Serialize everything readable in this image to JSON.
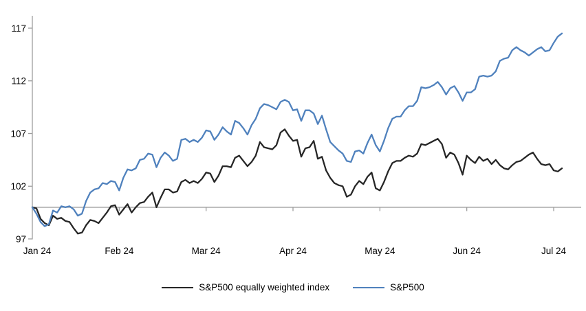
{
  "chart_data": {
    "type": "line",
    "title": "",
    "xlabel": "",
    "ylabel": "",
    "x_tick_labels": [
      "Jan 24",
      "Feb 24",
      "Mar 24",
      "Apr 24",
      "May 24",
      "Jun 24",
      "Jul 24"
    ],
    "y_ticks": [
      97,
      102,
      107,
      112,
      117
    ],
    "ylim": [
      96.2,
      118.3
    ],
    "baseline_value": 100,
    "grid": "baseline-only",
    "legend_position": "bottom",
    "axis_color": "#9d9d9d",
    "series": [
      {
        "name": "S&P500 equally weighted index",
        "color": "#262626",
        "values": [
          100.0,
          99.9,
          98.9,
          98.5,
          98.3,
          99.2,
          98.9,
          99.0,
          98.7,
          98.6,
          98.0,
          97.5,
          97.6,
          98.3,
          98.8,
          98.7,
          98.5,
          99.0,
          99.5,
          100.1,
          100.2,
          99.3,
          99.8,
          100.3,
          99.5,
          100.0,
          100.4,
          100.5,
          101.0,
          101.4,
          100.0,
          100.9,
          101.7,
          101.7,
          101.4,
          101.5,
          102.4,
          102.6,
          102.3,
          102.5,
          102.3,
          102.7,
          103.3,
          103.2,
          102.4,
          103.0,
          103.9,
          103.9,
          103.8,
          104.7,
          104.9,
          104.4,
          103.9,
          104.3,
          104.9,
          106.2,
          105.7,
          105.6,
          105.5,
          105.9,
          107.1,
          107.4,
          106.8,
          106.3,
          106.4,
          104.8,
          105.6,
          105.7,
          106.3,
          104.6,
          104.8,
          103.5,
          102.8,
          102.3,
          102.1,
          102.0,
          101.0,
          101.2,
          102.0,
          102.5,
          102.2,
          102.9,
          103.3,
          101.8,
          101.6,
          102.4,
          103.4,
          104.2,
          104.4,
          104.4,
          104.7,
          104.9,
          104.8,
          105.1,
          106.0,
          105.9,
          106.1,
          106.3,
          106.5,
          106.0,
          104.7,
          105.2,
          105.0,
          104.2,
          103.1,
          104.9,
          104.5,
          104.2,
          104.8,
          104.4,
          104.6,
          104.1,
          104.5,
          104.0,
          103.7,
          103.6,
          104.0,
          104.3,
          104.4,
          104.7,
          105.0,
          105.2,
          104.6,
          104.1,
          104.0,
          104.1,
          103.5,
          103.4,
          103.7
        ]
      },
      {
        "name": "S&P500",
        "color": "#4f81bd",
        "values": [
          100.0,
          99.4,
          98.6,
          98.2,
          98.4,
          99.7,
          99.5,
          100.1,
          100.0,
          100.1,
          99.8,
          99.2,
          99.4,
          100.6,
          101.4,
          101.7,
          101.8,
          102.3,
          102.2,
          102.5,
          102.4,
          101.6,
          102.8,
          103.6,
          103.5,
          103.7,
          104.5,
          104.6,
          105.1,
          105.0,
          103.8,
          104.7,
          105.2,
          104.9,
          104.4,
          104.6,
          106.4,
          106.5,
          106.2,
          106.4,
          106.2,
          106.6,
          107.3,
          107.2,
          106.4,
          106.9,
          107.6,
          107.2,
          106.9,
          108.2,
          108.0,
          107.5,
          106.9,
          107.8,
          108.4,
          109.4,
          109.8,
          109.7,
          109.5,
          109.3,
          110.0,
          110.2,
          110.0,
          109.2,
          109.3,
          108.2,
          109.2,
          109.2,
          108.9,
          107.9,
          108.7,
          107.4,
          106.2,
          105.8,
          105.4,
          105.1,
          104.4,
          104.3,
          105.3,
          105.4,
          105.1,
          106.1,
          106.9,
          105.9,
          105.3,
          106.3,
          107.5,
          108.4,
          108.6,
          108.6,
          109.2,
          109.6,
          109.6,
          110.1,
          111.4,
          111.3,
          111.4,
          111.6,
          111.9,
          111.4,
          110.7,
          111.3,
          111.5,
          110.9,
          110.1,
          110.9,
          110.9,
          111.2,
          112.4,
          112.5,
          112.4,
          112.5,
          112.9,
          113.9,
          114.1,
          114.2,
          114.9,
          115.2,
          114.9,
          114.7,
          114.4,
          114.7,
          115.0,
          115.2,
          114.8,
          114.9,
          115.6,
          116.2,
          116.5
        ]
      }
    ]
  }
}
